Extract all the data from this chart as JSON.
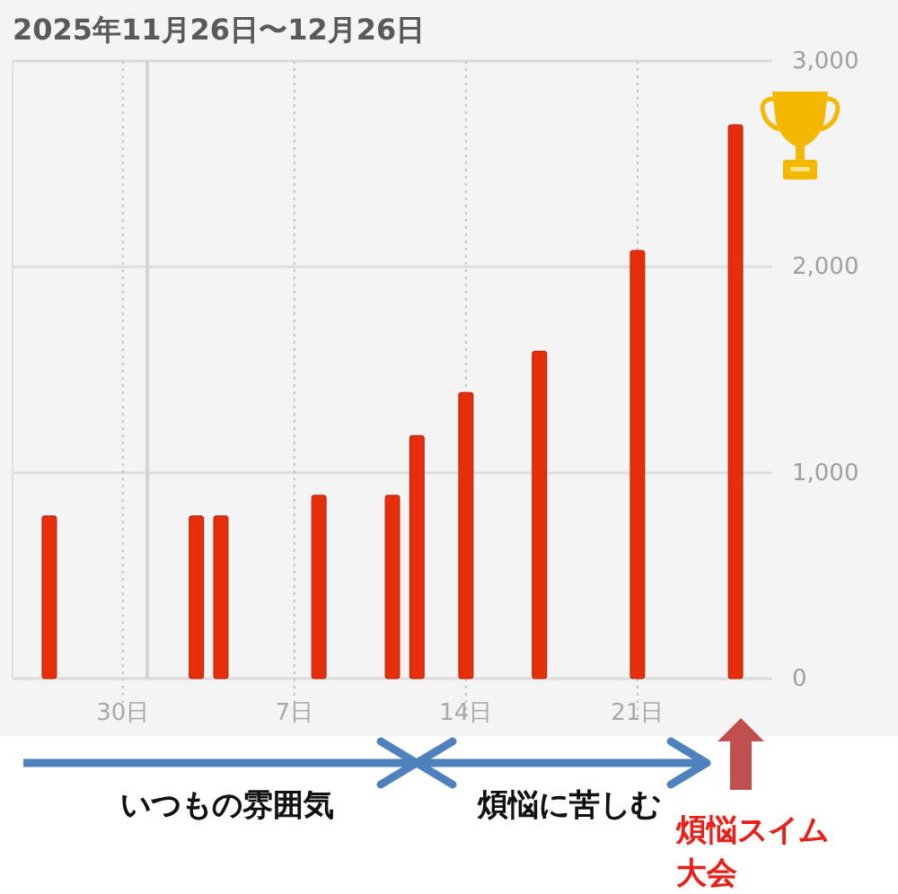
{
  "chart_data": {
    "type": "bar",
    "title": "2025年11月26日〜12月26日",
    "x": [
      "2025-11-27",
      "2025-12-03",
      "2025-12-04",
      "2025-12-08",
      "2025-12-11",
      "2025-12-12",
      "2025-12-14",
      "2025-12-17",
      "2025-12-21",
      "2025-12-25"
    ],
    "values": [
      790,
      790,
      790,
      890,
      890,
      1180,
      1390,
      1590,
      2080,
      2690
    ],
    "color": "#e62e0b",
    "xlim": [
      "2025-11-25T12:00",
      "2025-12-26T12:00"
    ],
    "xticks": [
      {
        "value": "2025-11-30",
        "label": "30日"
      },
      {
        "value": "2025-12-07",
        "label": "7日"
      },
      {
        "value": "2025-12-14",
        "label": "14日"
      },
      {
        "value": "2025-12-21",
        "label": "21日"
      }
    ],
    "ylim": [
      0,
      3000
    ],
    "yticks": [
      0,
      {
        "value": 1000,
        "label": "1,000"
      },
      {
        "value": 2000,
        "label": "2,000"
      },
      {
        "value": 3000,
        "label": "3,000"
      }
    ],
    "grid": true,
    "ref_lines": [
      {
        "axis": "x",
        "value": "2025-12-01"
      }
    ],
    "annotations": [
      "いつもの雰囲気",
      "煩悩に苦しむ",
      "煩悩スイム大会"
    ]
  }
}
